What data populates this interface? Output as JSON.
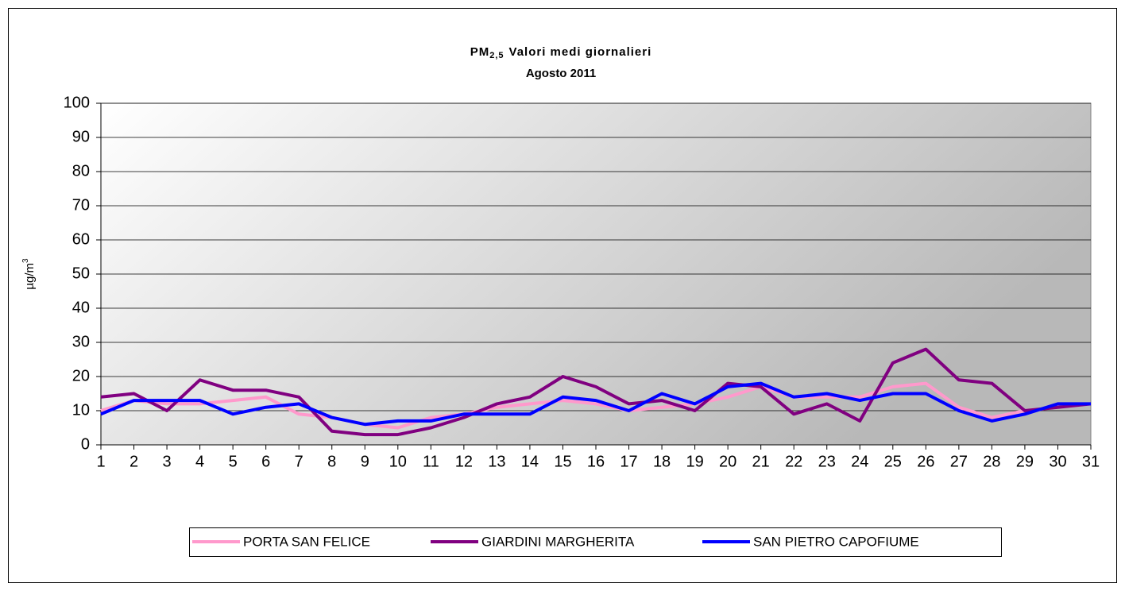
{
  "chart_data": {
    "type": "line",
    "title_parts": [
      "PM",
      "2,5",
      "Valori medi giornalieri"
    ],
    "subtitle": "Agosto 2011",
    "ylabel_parts": [
      "µg/m",
      "3"
    ],
    "x": [
      1,
      2,
      3,
      4,
      5,
      6,
      7,
      8,
      9,
      10,
      11,
      12,
      13,
      14,
      15,
      16,
      17,
      18,
      19,
      20,
      21,
      22,
      23,
      24,
      25,
      26,
      27,
      28,
      29,
      30,
      31
    ],
    "xlim": [
      1,
      31
    ],
    "xticks": [
      1,
      2,
      3,
      4,
      5,
      6,
      7,
      8,
      9,
      10,
      11,
      12,
      13,
      14,
      15,
      16,
      17,
      18,
      19,
      20,
      21,
      22,
      23,
      24,
      25,
      26,
      27,
      28,
      29,
      30,
      31
    ],
    "ylim": [
      0,
      100
    ],
    "yticks": [
      0,
      10,
      20,
      30,
      40,
      50,
      60,
      70,
      80,
      90,
      100
    ],
    "grid": true,
    "legend": "bottom",
    "series": [
      {
        "name": "PORTA SAN FELICE",
        "color": "#ff99cc",
        "values": [
          10,
          13,
          12,
          12,
          13,
          14,
          9,
          8,
          6,
          5,
          8,
          9,
          11,
          12,
          13,
          12,
          10,
          11,
          12,
          14,
          17,
          14,
          14,
          14,
          17,
          18,
          11,
          8,
          10,
          11,
          12
        ]
      },
      {
        "name": "GIARDINI MARGHERITA",
        "color": "#800080",
        "values": [
          14,
          15,
          10,
          19,
          16,
          16,
          14,
          4,
          3,
          3,
          5,
          8,
          12,
          14,
          20,
          17,
          12,
          13,
          10,
          18,
          17,
          9,
          12,
          7,
          24,
          28,
          19,
          18,
          10,
          11,
          12
        ]
      },
      {
        "name": "SAN PIETRO CAPOFIUME",
        "color": "#0000ff",
        "values": [
          9,
          13,
          13,
          13,
          9,
          11,
          12,
          8,
          6,
          7,
          7,
          9,
          9,
          9,
          14,
          13,
          10,
          15,
          12,
          17,
          18,
          14,
          15,
          13,
          15,
          15,
          10,
          7,
          9,
          12,
          12
        ]
      }
    ]
  }
}
